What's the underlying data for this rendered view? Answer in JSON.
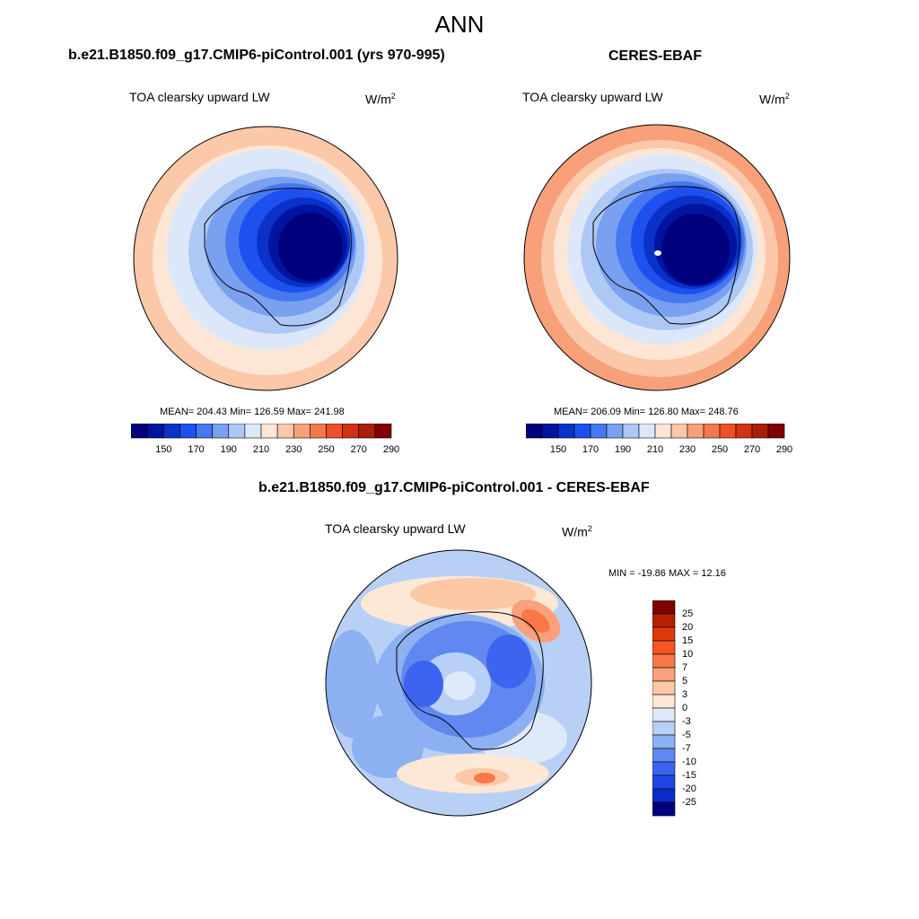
{
  "title": "ANN",
  "panels": [
    {
      "title": "b.e21.B1850.f09_g17.CMIP6-piControl.001 (yrs 970-995)",
      "variable": "TOA clearsky upward LW",
      "unit_base": "W/m",
      "unit_exp": "2",
      "stats": {
        "mean": "204.43",
        "min": "126.59",
        "max": "241.98"
      },
      "stats_text": "MEAN= 204.43  Min= 126.59  Max= 241.98"
    },
    {
      "title": "CERES-EBAF",
      "variable": "TOA clearsky upward LW",
      "unit_base": "W/m",
      "unit_exp": "2",
      "stats": {
        "mean": "206.09",
        "min": "126.80",
        "max": "248.76"
      },
      "stats_text": "MEAN= 206.09  Min= 126.80  Max= 248.76"
    },
    {
      "title": "b.e21.B1850.f09_g17.CMIP6-piControl.001 - CERES-EBAF",
      "variable": "TOA clearsky upward LW",
      "unit_base": "W/m",
      "unit_exp": "2",
      "stats": {
        "min": "-19.86",
        "max": "12.16"
      },
      "stats_text": "MIN = -19.86 MAX =  12.16"
    }
  ],
  "colorbar_abs": {
    "colors": [
      "#00007f",
      "#0014a0",
      "#0a32c8",
      "#1e50f0",
      "#4678f0",
      "#7aa0f0",
      "#aec8f5",
      "#dce8fa",
      "#fde6d6",
      "#fcc8aa",
      "#f8a07a",
      "#f4784e",
      "#ee5028",
      "#d23214",
      "#aa1e0a",
      "#800000"
    ],
    "labels": [
      "150",
      "170",
      "190",
      "210",
      "230",
      "250",
      "270",
      "290"
    ]
  },
  "colorbar_diff": {
    "colors": [
      "#800000",
      "#b42000",
      "#dc3a0a",
      "#f55520",
      "#f87848",
      "#faa07a",
      "#fcc8a6",
      "#fde8d6",
      "#dceafa",
      "#b8d0f5",
      "#8cb0f2",
      "#6088f0",
      "#3c64f0",
      "#1e46e6",
      "#0a2cc8",
      "#000080"
    ],
    "labels": [
      "25",
      "20",
      "15",
      "10",
      "7",
      "5",
      "3",
      "0",
      "-3",
      "-5",
      "-7",
      "-10",
      "-15",
      "-20",
      "-25"
    ]
  }
}
